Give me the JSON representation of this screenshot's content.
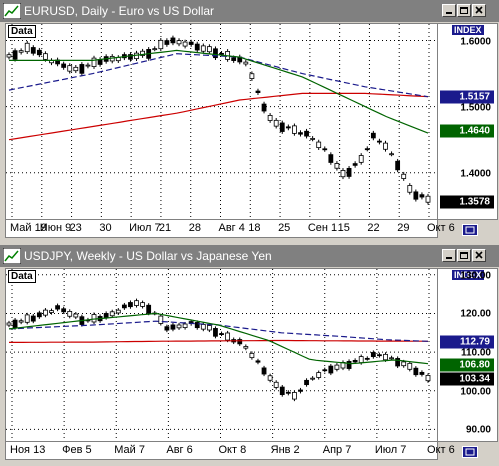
{
  "charts": [
    {
      "title": "EURUSD, Daily - Euro vs US Dollar",
      "data_label": "Data",
      "index_label": "INDEX",
      "ymin": 1.33,
      "ymax": 1.625,
      "y_ticks": [
        {
          "value": 1.6,
          "label": "1.6000"
        },
        {
          "value": 1.5,
          "label": "1.5000"
        },
        {
          "value": 1.4,
          "label": "1.4000"
        }
      ],
      "badges": [
        {
          "value": 1.5157,
          "label": "1.5157",
          "bg": "#1a1a8c",
          "fg": "#ffffff"
        },
        {
          "value": 1.464,
          "label": "1.4640",
          "bg": "#006400",
          "fg": "#ffffff"
        },
        {
          "value": 1.3578,
          "label": "1.3578",
          "bg": "#000000",
          "fg": "#ffffff"
        }
      ],
      "x_ticks": [
        "Май 19",
        "Июн 9",
        "23",
        "30",
        "Июл 7",
        "21",
        "28",
        "Авг 4",
        "18",
        "25",
        "Сен 1",
        "15",
        "22",
        "29",
        "Окт 6"
      ]
    },
    {
      "title": "USDJPY, Weekly - US Dollar vs Japanese Yen",
      "data_label": "Data",
      "index_label": "INDEX",
      "ymin": 87.0,
      "ymax": 131.5,
      "y_ticks": [
        {
          "value": 130,
          "label": "130.00"
        },
        {
          "value": 120,
          "label": "120.00"
        },
        {
          "value": 110,
          "label": "110.00"
        },
        {
          "value": 100,
          "label": "100.00"
        },
        {
          "value": 90,
          "label": "90.00"
        }
      ],
      "badges": [
        {
          "value": 112.79,
          "label": "112.79",
          "bg": "#1a1a8c",
          "fg": "#ffffff"
        },
        {
          "value": 106.8,
          "label": "106.80",
          "bg": "#006400",
          "fg": "#ffffff"
        },
        {
          "value": 103.34,
          "label": "103.34",
          "bg": "#000000",
          "fg": "#ffffff"
        }
      ],
      "x_ticks": [
        "Ноя 13",
        "Фев 5",
        "Май 7",
        "Авг 6",
        "Окт 8",
        "Янв 2",
        "Апр 7",
        "Июл 7",
        "Окт 6"
      ]
    }
  ],
  "colors": {
    "bull": "#ffffff",
    "bear": "#000000",
    "ma_fast": "#006400",
    "ma_mid": "#1a1a8c",
    "ma_slow": "#cc0000",
    "grid": "#000000"
  }
}
